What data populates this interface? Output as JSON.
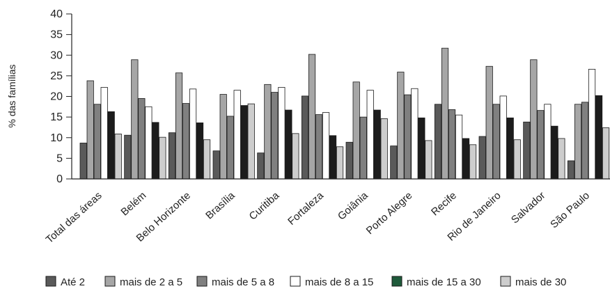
{
  "chart_data": {
    "type": "bar",
    "ylabel": "% das famílias",
    "xlabel": "",
    "title": "",
    "ylim": [
      0,
      40
    ],
    "yticks": [
      0,
      5,
      10,
      15,
      20,
      25,
      30,
      35,
      40
    ],
    "grid": false,
    "legend_position": "bottom",
    "categories": [
      "Total das áreas",
      "Belém",
      "Belo Horizonte",
      "Brasília",
      "Curitiba",
      "Fortaleza",
      "Goiânia",
      "Porto Alegre",
      "Recife",
      "Rio de Janeiro",
      "Salvador",
      "São Paulo"
    ],
    "series": [
      {
        "name": "Até 2",
        "color": "#5a5a5a",
        "values": [
          8.7,
          10.6,
          11.2,
          6.8,
          6.3,
          20.1,
          8.9,
          8.0,
          18.1,
          10.3,
          13.8,
          4.4
        ]
      },
      {
        "name": "mais de 2 a 5",
        "color": "#a6a6a6",
        "values": [
          23.8,
          28.9,
          25.7,
          20.5,
          22.9,
          30.2,
          23.5,
          25.9,
          31.7,
          27.3,
          28.9,
          18.1
        ]
      },
      {
        "name": "mais de 5 a 8",
        "color": "#808080",
        "values": [
          18.1,
          19.5,
          18.3,
          15.2,
          21.0,
          15.6,
          15.0,
          20.4,
          16.8,
          18.1,
          16.6,
          18.6
        ]
      },
      {
        "name": "mais de 8 a 15",
        "color": "#ffffff",
        "values": [
          22.2,
          17.5,
          21.8,
          21.5,
          22.2,
          16.1,
          21.5,
          21.9,
          15.5,
          20.1,
          18.1,
          26.6
        ]
      },
      {
        "name": "mais de 15 a 30",
        "color": "#1c1c1c",
        "legend_color": "#1e5a3a",
        "values": [
          16.3,
          13.7,
          13.6,
          17.8,
          16.7,
          10.5,
          16.7,
          14.8,
          9.8,
          14.8,
          12.8,
          20.2
        ]
      },
      {
        "name": "mais de 30",
        "color": "#cdcdcd",
        "values": [
          10.9,
          10.1,
          9.5,
          18.2,
          11.0,
          7.8,
          14.6,
          9.3,
          8.3,
          9.5,
          9.8,
          12.4
        ]
      }
    ]
  }
}
